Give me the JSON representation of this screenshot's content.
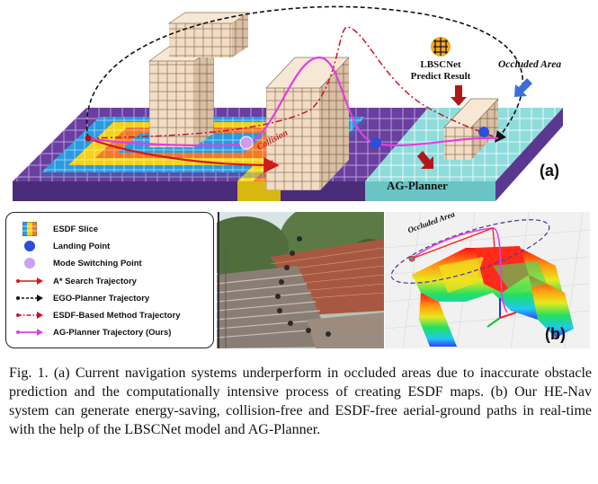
{
  "panel_a": {
    "label": "(a)",
    "lbscnet_label": "LBSCNet",
    "predict_label": "Predict Result",
    "occluded_label": "Occluded Area",
    "collision_label": "Collision",
    "agplanner_label": "AG-Planner",
    "colors": {
      "astar": "#d11a1a",
      "ego": "#111111",
      "esdf": "#c8142a",
      "ag": "#e040e0",
      "ground_purple": "#6a3fa0",
      "ground_cyan": "#8fdcdc",
      "esdf_blue": "#2a9be0",
      "esdf_yellow": "#f4d21c",
      "esdf_orange": "#f07a2a",
      "block": "#f2dcc4",
      "arrow_blue": "#3b6fd8",
      "arrow_red": "#b01818"
    }
  },
  "legend": {
    "items": [
      {
        "label": "ESDF Slice",
        "icon": "esdf-slice-icon"
      },
      {
        "label": "Landing Point",
        "icon": "landing-point-icon"
      },
      {
        "label": "Mode Switching Point",
        "icon": "mode-switching-point-icon"
      },
      {
        "label": "A* Search Trajectory",
        "icon": "astar-line-icon"
      },
      {
        "label": "EGO-Planner Trajectory",
        "icon": "ego-line-icon"
      },
      {
        "label": "ESDF-Based Method Trajectory",
        "icon": "esdf-line-icon"
      },
      {
        "label": "AG-Planner Trajectory (Ours)",
        "icon": "ag-line-icon"
      }
    ]
  },
  "panel_b": {
    "label": "(b)",
    "occluded_label": "Occluded Area"
  },
  "caption": {
    "text": "Fig. 1.  (a) Current navigation systems underperform in occluded areas due to inaccurate obstacle prediction and the computationally intensive process of creating ESDF maps. (b) Our HE-Nav system can generate energy-saving, collision-free and ESDF-free aerial-ground paths in real-time with the help of the LBSCNet model and AG-Planner."
  }
}
